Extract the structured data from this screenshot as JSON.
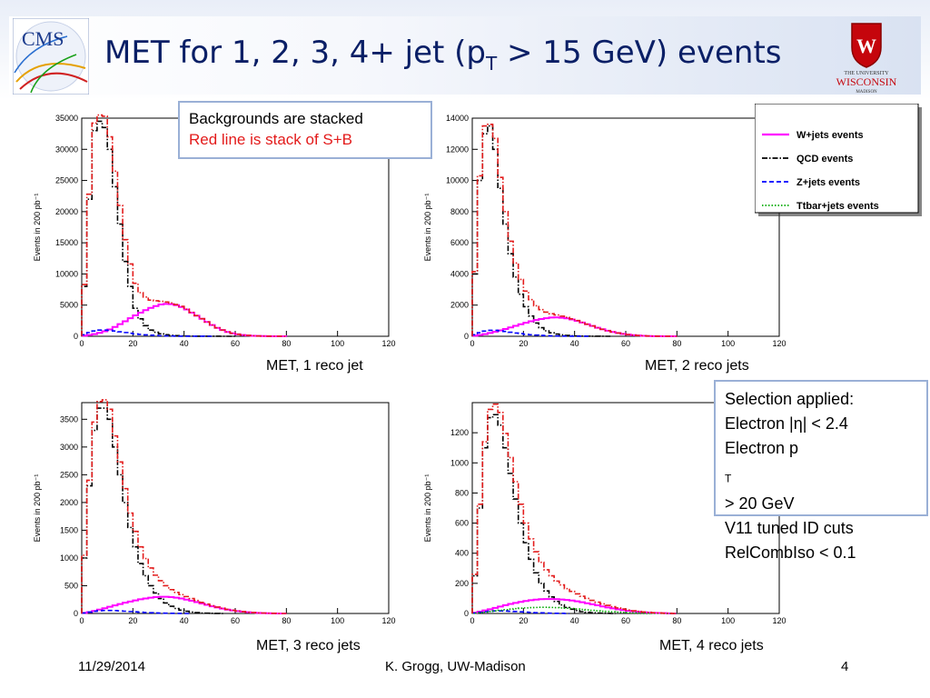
{
  "header": {
    "title_prefix": "MET for 1, 2, 3, 4+ jet (p",
    "title_sub": "T",
    "title_suffix": " > 15 GeV) events",
    "cms_logo_text": "CMS",
    "uw_logo_line1": "THE UNIVERSITY",
    "uw_logo_line2": "WISCONSIN",
    "uw_logo_line3": "MADISON"
  },
  "note": {
    "line1": "Backgrounds are stacked",
    "line2": "Red line is stack of S+B"
  },
  "legend": {
    "entries": [
      {
        "label": "W+jets events",
        "color": "#ff00ff",
        "style": "solid"
      },
      {
        "label": "QCD events",
        "color": "#000000",
        "style": "dashdot"
      },
      {
        "label": "Z+jets events",
        "color": "#0000ff",
        "style": "dashed"
      },
      {
        "label": "Ttbar+jets events",
        "color": "#00aa00",
        "style": "dotted"
      }
    ]
  },
  "selection": {
    "line1": "Selection applied:",
    "line2_prefix": "Electron |η| < 2.4",
    "line3_prefix": "Electron p",
    "line3_sub": "T",
    "line3_suffix": " > 20 GeV",
    "line4": "V11 tuned ID cuts",
    "line5": "RelCombIso < 0.1"
  },
  "footer": {
    "date": "11/29/2014",
    "author": "K. Grogg, UW-Madison",
    "page": "4"
  },
  "chart_data": [
    {
      "type": "line",
      "caption": "MET, 1 reco jet",
      "ylabel": "Events in 200 pb⁻¹",
      "xlim": [
        0,
        120
      ],
      "ylim": [
        0,
        35000
      ],
      "xticks": [
        0,
        20,
        40,
        60,
        80,
        100,
        120
      ],
      "yticks": [
        0,
        5000,
        10000,
        15000,
        20000,
        25000,
        30000,
        35000
      ],
      "x_bin_edges_step": 2,
      "series": [
        {
          "name": "QCD events",
          "color": "#000000",
          "style": "dashdot",
          "values": [
            8000,
            22000,
            33000,
            34500,
            33500,
            30000,
            24000,
            18000,
            12000,
            8000,
            4500,
            2800,
            1700,
            1000,
            650,
            400,
            250,
            160,
            100,
            60,
            40,
            25,
            15,
            10,
            6,
            4,
            2,
            1,
            0,
            0
          ]
        },
        {
          "name": "W+jets events",
          "color": "#ff00ff",
          "style": "solid",
          "values": [
            100,
            200,
            350,
            550,
            800,
            1100,
            1500,
            1950,
            2400,
            2900,
            3350,
            3800,
            4200,
            4550,
            4850,
            5100,
            5200,
            5150,
            5000,
            4700,
            4300,
            3800,
            3300,
            2800,
            2300,
            1800,
            1350,
            1000,
            700,
            480,
            320,
            200,
            130,
            80,
            50,
            30,
            15,
            8,
            4,
            2
          ]
        },
        {
          "name": "Z+jets events",
          "color": "#0000ff",
          "style": "dashed",
          "values": [
            250,
            600,
            850,
            1000,
            1000,
            950,
            850,
            720,
            600,
            480,
            380,
            300,
            230,
            170,
            130,
            90,
            60,
            40,
            25,
            15,
            10,
            5,
            3,
            2,
            1,
            0
          ]
        },
        {
          "name": "S+B",
          "color": "#e31b1b",
          "style": "dashdot",
          "values": [
            8300,
            22800,
            34200,
            35500,
            35300,
            32000,
            26500,
            21000,
            15500,
            11600,
            8500,
            7000,
            6300,
            5800,
            5700,
            5600,
            5500,
            5350,
            5100,
            4800,
            4350,
            3830,
            3320,
            2810,
            2310,
            1805,
            1352,
            1001,
            700,
            480,
            320,
            200,
            130,
            80,
            50,
            30,
            15,
            8,
            4,
            2
          ]
        }
      ]
    },
    {
      "type": "line",
      "caption": "MET, 2 reco jets",
      "ylabel": "Events in 200 pb⁻¹",
      "xlim": [
        0,
        120
      ],
      "ylim": [
        0,
        14000
      ],
      "xticks": [
        0,
        20,
        40,
        60,
        80,
        100,
        120
      ],
      "yticks": [
        0,
        2000,
        4000,
        6000,
        8000,
        10000,
        12000,
        14000
      ],
      "x_bin_edges_step": 2,
      "series": [
        {
          "name": "QCD events",
          "color": "#000000",
          "style": "dashdot",
          "values": [
            4000,
            10000,
            13000,
            13500,
            12000,
            9500,
            7200,
            5300,
            3800,
            2700,
            1900,
            1300,
            850,
            550,
            350,
            220,
            140,
            90,
            55,
            35,
            20,
            12,
            7,
            4,
            2,
            1,
            0
          ]
        },
        {
          "name": "W+jets events",
          "color": "#ff00ff",
          "style": "solid",
          "values": [
            40,
            80,
            140,
            210,
            290,
            380,
            470,
            570,
            670,
            770,
            870,
            960,
            1040,
            1110,
            1160,
            1200,
            1210,
            1190,
            1150,
            1080,
            990,
            880,
            770,
            660,
            550,
            450,
            360,
            280,
            210,
            155,
            110,
            75,
            50,
            30,
            18,
            10,
            5,
            3,
            1,
            0
          ]
        },
        {
          "name": "Z+jets events",
          "color": "#0000ff",
          "style": "dashed",
          "values": [
            100,
            230,
            330,
            380,
            380,
            350,
            310,
            260,
            210,
            170,
            130,
            100,
            75,
            55,
            40,
            28,
            18,
            12,
            7,
            4,
            2,
            1,
            0
          ]
        },
        {
          "name": "S+B",
          "color": "#e31b1b",
          "style": "dashdot",
          "values": [
            4150,
            10300,
            13500,
            13600,
            12700,
            10200,
            8000,
            6100,
            4700,
            3650,
            2900,
            2350,
            1960,
            1710,
            1550,
            1450,
            1370,
            1290,
            1215,
            1120,
            1010,
            892,
            777,
            664,
            552,
            451,
            360,
            280,
            210,
            155,
            110,
            75,
            50,
            30,
            18,
            10,
            5,
            3,
            1,
            0
          ]
        }
      ]
    },
    {
      "type": "line",
      "caption": "MET, 3 reco jets",
      "ylabel": "Events in 200 pb⁻¹",
      "xlim": [
        0,
        120
      ],
      "ylim": [
        0,
        3800
      ],
      "xticks": [
        0,
        20,
        40,
        60,
        80,
        100,
        120
      ],
      "yticks": [
        0,
        500,
        1000,
        1500,
        2000,
        2500,
        3000,
        3500
      ],
      "x_bin_edges_step": 2,
      "series": [
        {
          "name": "QCD events",
          "color": "#000000",
          "style": "dashdot",
          "values": [
            1000,
            2300,
            3300,
            3700,
            3700,
            3500,
            3000,
            2500,
            2000,
            1550,
            1200,
            900,
            680,
            500,
            370,
            270,
            190,
            130,
            90,
            60,
            40,
            25,
            15,
            8,
            5,
            3,
            1,
            0
          ]
        },
        {
          "name": "W+jets events",
          "color": "#ff00ff",
          "style": "solid",
          "values": [
            10,
            25,
            45,
            70,
            95,
            120,
            145,
            170,
            195,
            215,
            235,
            255,
            270,
            285,
            295,
            300,
            300,
            295,
            285,
            270,
            250,
            230,
            205,
            180,
            155,
            130,
            108,
            88,
            70,
            55,
            42,
            32,
            23,
            16,
            11,
            7,
            4,
            2,
            1,
            0
          ]
        },
        {
          "name": "Z+jets events",
          "color": "#0000ff",
          "style": "dashed",
          "values": [
            10,
            25,
            40,
            50,
            55,
            55,
            52,
            47,
            41,
            35,
            29,
            23,
            18,
            14,
            10,
            7,
            5,
            3,
            2,
            1,
            0
          ]
        },
        {
          "name": "S+B",
          "color": "#e31b1b",
          "style": "dashdot",
          "values": [
            1050,
            2400,
            3450,
            3820,
            3850,
            3680,
            3200,
            2730,
            2250,
            1810,
            1480,
            1200,
            990,
            820,
            690,
            590,
            500,
            430,
            380,
            340,
            305,
            270,
            235,
            200,
            170,
            140,
            115,
            95,
            75,
            58,
            44,
            33,
            24,
            17,
            12,
            8,
            5,
            3,
            1,
            0
          ]
        }
      ]
    },
    {
      "type": "line",
      "caption": "MET, 4 reco jets",
      "ylabel": "Events in 200 pb⁻¹",
      "xlim": [
        0,
        120
      ],
      "ylim": [
        0,
        1400
      ],
      "xticks": [
        0,
        20,
        40,
        60,
        80,
        100,
        120
      ],
      "yticks": [
        0,
        200,
        400,
        600,
        800,
        1000,
        1200
      ],
      "x_bin_edges_step": 2,
      "series": [
        {
          "name": "QCD events",
          "color": "#000000",
          "style": "dashdot",
          "values": [
            250,
            700,
            1100,
            1300,
            1320,
            1250,
            1100,
            930,
            760,
            600,
            470,
            360,
            270,
            200,
            150,
            110,
            80,
            57,
            40,
            28,
            19,
            12,
            8,
            5,
            3,
            2,
            1,
            0
          ]
        },
        {
          "name": "W+jets events",
          "color": "#ff00ff",
          "style": "solid",
          "values": [
            5,
            12,
            20,
            28,
            37,
            46,
            55,
            63,
            70,
            77,
            83,
            88,
            92,
            95,
            96,
            96,
            95,
            93,
            90,
            86,
            81,
            75,
            68,
            61,
            54,
            47,
            40,
            34,
            28,
            23,
            18,
            14,
            11,
            8,
            6,
            4,
            3,
            2,
            1,
            0
          ]
        },
        {
          "name": "Z+jets events",
          "color": "#0000ff",
          "style": "dashed",
          "values": [
            3,
            8,
            12,
            15,
            17,
            17,
            16,
            15,
            13,
            11,
            9,
            7,
            5,
            4,
            3,
            2,
            1,
            1,
            0
          ]
        },
        {
          "name": "Ttbar+jets events",
          "color": "#00aa00",
          "style": "dotted",
          "values": [
            2,
            5,
            9,
            13,
            17,
            21,
            25,
            29,
            32,
            35,
            37,
            39,
            40,
            41,
            41,
            40,
            39,
            37,
            35,
            33,
            30,
            27,
            24,
            21,
            18,
            15,
            13,
            11,
            9,
            7,
            5,
            4,
            3,
            2,
            2,
            1,
            1,
            0,
            0,
            0
          ]
        },
        {
          "name": "S+B",
          "color": "#e31b1b",
          "style": "dashdot",
          "values": [
            260,
            725,
            1140,
            1355,
            1390,
            1335,
            1195,
            1035,
            875,
            725,
            600,
            495,
            410,
            340,
            290,
            250,
            215,
            190,
            165,
            147,
            130,
            114,
            100,
            87,
            75,
            64,
            54,
            45,
            37,
            30,
            23,
            18,
            14,
            10,
            8,
            5,
            4,
            2,
            1,
            0
          ]
        }
      ]
    }
  ]
}
